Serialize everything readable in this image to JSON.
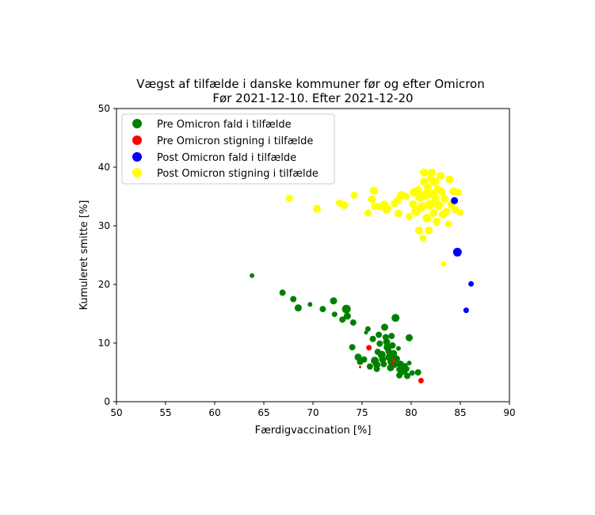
{
  "chart_data": {
    "type": "scatter",
    "title": "Vægst af tilfælde i danske kommuner før og efter Omicron",
    "subtitle": "Før 2021-12-10. Efter 2021-12-20",
    "xlabel": "Færdigvaccination [%]",
    "ylabel": "Kumuleret smitte [%]",
    "xlim": [
      50,
      90
    ],
    "ylim": [
      0,
      50
    ],
    "xticks": [
      50,
      55,
      60,
      65,
      70,
      75,
      80,
      85,
      90
    ],
    "yticks": [
      0,
      10,
      20,
      30,
      40,
      50
    ],
    "grid": false,
    "legend_position": "top-left",
    "series": [
      {
        "name": "Pre Omicron fald i tilfælde",
        "color": "#008000",
        "points": [
          [
            63.8,
            21.5,
            3
          ],
          [
            66.9,
            18.6,
            4
          ],
          [
            68.0,
            17.5,
            4
          ],
          [
            68.5,
            16.0,
            4.5
          ],
          [
            69.7,
            16.6,
            3
          ],
          [
            71.0,
            15.8,
            4
          ],
          [
            72.1,
            17.2,
            4.5
          ],
          [
            72.2,
            14.9,
            3.5
          ],
          [
            73.0,
            14.0,
            4
          ],
          [
            73.4,
            15.8,
            5.5
          ],
          [
            73.5,
            14.6,
            4.5
          ],
          [
            74.1,
            13.5,
            4
          ],
          [
            74.0,
            9.3,
            4
          ],
          [
            74.6,
            7.6,
            4.5
          ],
          [
            74.8,
            6.8,
            4
          ],
          [
            75.2,
            7.2,
            4
          ],
          [
            75.4,
            11.8,
            2.5
          ],
          [
            75.6,
            12.4,
            3.5
          ],
          [
            75.8,
            6.0,
            4
          ],
          [
            76.1,
            10.7,
            4
          ],
          [
            76.3,
            7.0,
            5
          ],
          [
            76.5,
            6.3,
            4.5
          ],
          [
            76.5,
            5.6,
            4
          ],
          [
            76.6,
            8.5,
            4
          ],
          [
            76.7,
            11.4,
            4
          ],
          [
            76.8,
            9.9,
            4
          ],
          [
            77.0,
            8.0,
            5
          ],
          [
            77.1,
            7.2,
            4.5
          ],
          [
            77.2,
            6.4,
            4
          ],
          [
            77.3,
            12.7,
            4.5
          ],
          [
            77.4,
            11.0,
            4
          ],
          [
            77.5,
            10.2,
            4.5
          ],
          [
            77.6,
            9.3,
            5
          ],
          [
            77.7,
            8.6,
            4
          ],
          [
            77.8,
            7.6,
            5
          ],
          [
            77.9,
            6.8,
            4
          ],
          [
            77.9,
            5.8,
            4.5
          ],
          [
            78.0,
            11.2,
            4
          ],
          [
            78.1,
            9.6,
            4
          ],
          [
            78.2,
            8.2,
            4.5
          ],
          [
            78.3,
            6.3,
            4
          ],
          [
            78.4,
            14.3,
            5
          ],
          [
            78.5,
            7.3,
            4.5
          ],
          [
            78.7,
            9.1,
            3
          ],
          [
            78.8,
            5.5,
            4
          ],
          [
            78.8,
            4.5,
            4
          ],
          [
            78.9,
            6.4,
            4.5
          ],
          [
            79.0,
            5.0,
            4
          ],
          [
            79.2,
            5.9,
            4.5
          ],
          [
            79.3,
            5.2,
            4
          ],
          [
            79.4,
            6.2,
            3
          ],
          [
            79.5,
            5.6,
            4
          ],
          [
            79.6,
            4.4,
            4
          ],
          [
            79.8,
            6.6,
            3
          ],
          [
            79.8,
            10.9,
            4.5
          ],
          [
            80.1,
            4.9,
            3.5
          ],
          [
            80.7,
            5.0,
            4
          ]
        ]
      },
      {
        "name": "Pre Omicron stigning i tilfælde",
        "color": "#ff0000",
        "points": [
          [
            75.7,
            9.2,
            3.5
          ],
          [
            74.8,
            5.9,
            1.5
          ],
          [
            78.1,
            6.6,
            2
          ],
          [
            78.3,
            7.2,
            1.5
          ],
          [
            81.0,
            3.6,
            3.5
          ]
        ]
      },
      {
        "name": "Post Omicron fald i tilfælde",
        "color": "#0000ff",
        "points": [
          [
            84.4,
            34.3,
            4.5
          ],
          [
            84.7,
            25.5,
            5.5
          ],
          [
            86.1,
            20.1,
            3.5
          ],
          [
            85.6,
            15.6,
            3.5
          ]
        ]
      },
      {
        "name": "Post Omicron stigning i tilfælde",
        "color": "#ffff00",
        "points": [
          [
            67.6,
            34.7,
            4.5
          ],
          [
            70.4,
            32.9,
            5
          ],
          [
            72.7,
            33.9,
            4.5
          ],
          [
            73.2,
            33.5,
            5
          ],
          [
            74.2,
            35.2,
            4.5
          ],
          [
            75.6,
            32.2,
            4.5
          ],
          [
            76.0,
            34.5,
            5
          ],
          [
            76.2,
            36.0,
            5
          ],
          [
            76.3,
            33.3,
            4.5
          ],
          [
            76.8,
            33.3,
            5
          ],
          [
            77.3,
            33.7,
            4.5
          ],
          [
            77.5,
            32.9,
            6
          ],
          [
            78.3,
            33.8,
            4.5
          ],
          [
            78.6,
            34.3,
            5
          ],
          [
            78.7,
            32.1,
            5
          ],
          [
            79.0,
            35.2,
            5.5
          ],
          [
            79.5,
            35.0,
            4.5
          ],
          [
            79.8,
            31.6,
            4.5
          ],
          [
            80.2,
            33.7,
            5
          ],
          [
            80.3,
            35.7,
            5.5
          ],
          [
            80.5,
            32.5,
            6
          ],
          [
            80.7,
            36.1,
            5
          ],
          [
            80.8,
            29.2,
            5
          ],
          [
            80.9,
            34.9,
            5.5
          ],
          [
            81.1,
            33.2,
            6
          ],
          [
            81.2,
            27.9,
            4.5
          ],
          [
            81.3,
            37.5,
            5
          ],
          [
            81.3,
            39.1,
            5
          ],
          [
            81.5,
            35.3,
            6
          ],
          [
            81.6,
            31.3,
            5.5
          ],
          [
            81.7,
            36.6,
            5
          ],
          [
            81.8,
            29.2,
            5
          ],
          [
            81.9,
            33.6,
            6
          ],
          [
            82.0,
            38.0,
            5
          ],
          [
            82.1,
            39.1,
            5
          ],
          [
            82.2,
            35.4,
            5.5
          ],
          [
            82.3,
            32.2,
            5
          ],
          [
            82.4,
            37.5,
            5.5
          ],
          [
            82.5,
            34.6,
            5
          ],
          [
            82.6,
            30.7,
            5
          ],
          [
            82.7,
            36.2,
            5
          ],
          [
            82.8,
            33.5,
            5.5
          ],
          [
            83.0,
            38.5,
            5
          ],
          [
            83.1,
            35.8,
            5
          ],
          [
            83.2,
            31.9,
            5
          ],
          [
            83.3,
            23.5,
            3.5
          ],
          [
            83.4,
            34.6,
            5
          ],
          [
            83.6,
            32.4,
            5
          ],
          [
            83.8,
            30.3,
            4.5
          ],
          [
            83.9,
            37.9,
            5
          ],
          [
            84.1,
            33.6,
            5
          ],
          [
            84.3,
            35.9,
            5
          ],
          [
            84.5,
            32.7,
            4.5
          ],
          [
            84.8,
            35.7,
            4.5
          ],
          [
            85.0,
            32.3,
            4.5
          ]
        ]
      }
    ]
  }
}
